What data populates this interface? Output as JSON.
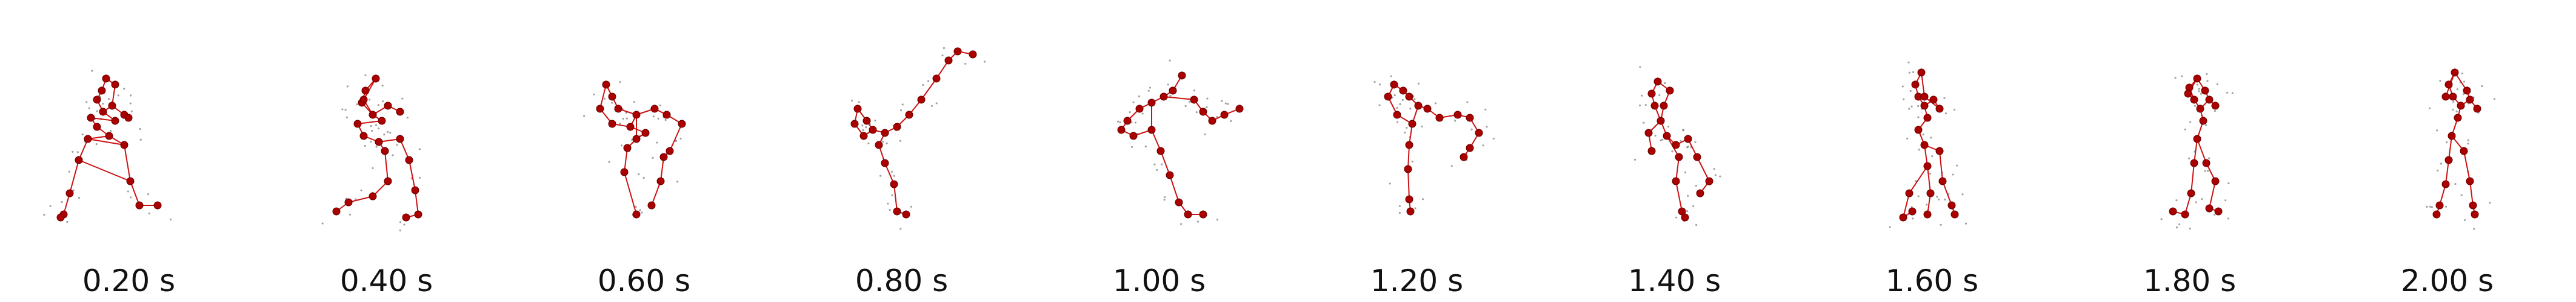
{
  "frames": [
    {
      "label": "0.20 s"
    },
    {
      "label": "0.40 s"
    },
    {
      "label": "0.60 s"
    },
    {
      "label": "0.80 s"
    },
    {
      "label": "1.00 s"
    },
    {
      "label": "1.20 s"
    },
    {
      "label": "1.40 s"
    },
    {
      "label": "1.60 s"
    },
    {
      "label": "1.80 s"
    },
    {
      "label": "2.00 s"
    }
  ],
  "colors": {
    "skeleton": "#cc1111",
    "joint": "#aa0000",
    "ghost": "#555555"
  }
}
